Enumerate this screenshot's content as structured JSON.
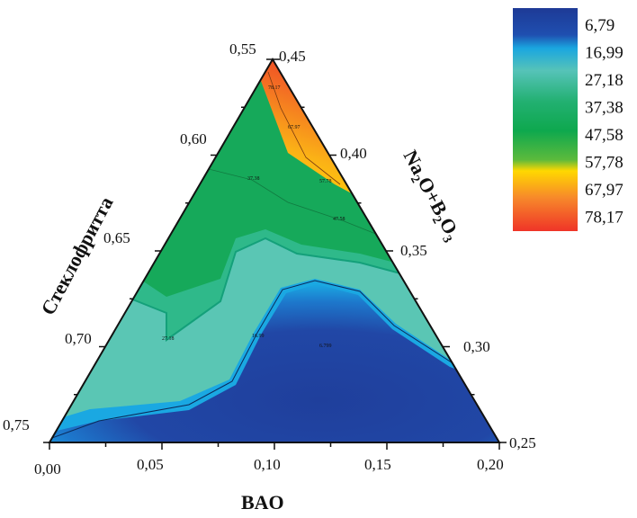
{
  "chart_data": {
    "type": "ternary-contour",
    "axes": {
      "bottom": {
        "label": "BAO",
        "ticks": [
          "0,00",
          "0,05",
          "0,10",
          "0,15",
          "0,20"
        ],
        "range": [
          0,
          0.2
        ]
      },
      "left": {
        "label": "Стеклофритта",
        "ticks": [
          "0,55",
          "0,60",
          "0,65",
          "0,70",
          "0,75"
        ],
        "range": [
          0.55,
          0.75
        ]
      },
      "right": {
        "label_parts": [
          "Na",
          "2",
          "O+B",
          "2",
          "O",
          "3"
        ],
        "label": "Na2O+B2O3",
        "ticks": [
          "0,45",
          "0,40",
          "0,35",
          "0,30",
          "0,25"
        ],
        "range": [
          0.25,
          0.45
        ]
      }
    },
    "legend": {
      "placement": "top-right",
      "levels": [
        "6,79",
        "16,99",
        "27,18",
        "37,38",
        "47,58",
        "57,78",
        "67,97",
        "78,17"
      ],
      "colors": [
        "#1e3f9a",
        "#1aa7d8",
        "#4fc0b0",
        "#1fae68",
        "#0fa84e",
        "#6cbf3a",
        "#ffd400",
        "#f03a2a"
      ]
    },
    "contour_labels": [
      "78.17",
      "67.97",
      "57.78",
      "47.58",
      "37.38",
      "27.18",
      "16.99",
      "6.799"
    ]
  }
}
